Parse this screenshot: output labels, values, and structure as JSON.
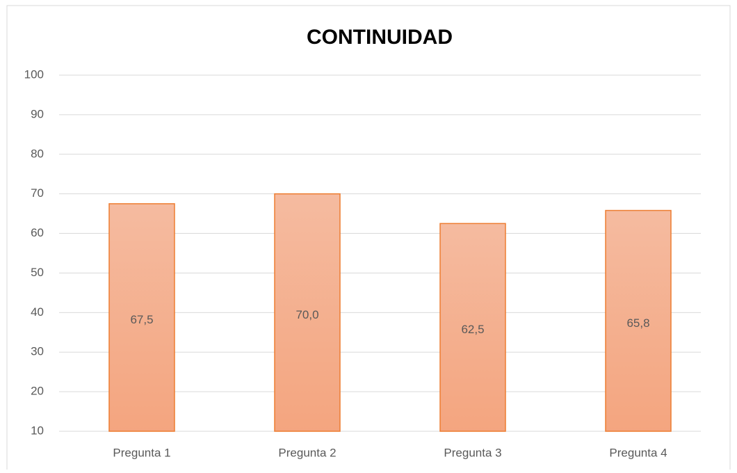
{
  "chart_data": {
    "type": "bar",
    "title": "CONTINUIDAD",
    "categories": [
      "Pregunta 1",
      "Pregunta 2",
      "Pregunta 3",
      "Pregunta 4"
    ],
    "values": [
      67.5,
      70.0,
      62.5,
      65.8
    ],
    "value_labels": [
      "67,5",
      "70,0",
      "62,5",
      "65,8"
    ],
    "color": "#ed7d31",
    "ylim": [
      10,
      100
    ],
    "yticks": [
      10,
      20,
      30,
      40,
      50,
      60,
      70,
      80,
      90,
      100
    ],
    "grid": true
  }
}
